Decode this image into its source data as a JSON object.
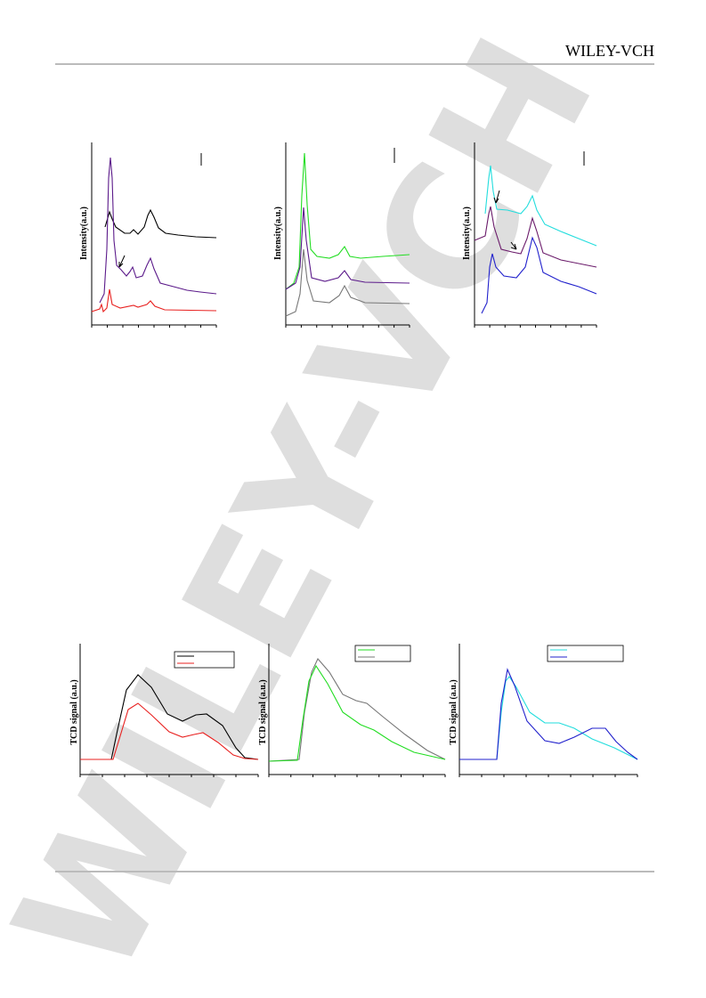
{
  "header": {
    "publisher": "WILEY-VCH"
  },
  "watermark": "WILEY-VCH",
  "figures": [
    {
      "panels": [
        {
          "y_label": "Intensity(a.u.)"
        },
        {
          "y_label": "Intensity(a.u.)"
        },
        {
          "y_label": "Intensity(a.u.)"
        }
      ]
    },
    {
      "panels": [
        {
          "y_label": "TCD signal (a.u.)"
        },
        {
          "y_label": "TCD signal (a.u.)"
        },
        {
          "y_label": "TCD signal (a.u.)"
        }
      ]
    }
  ]
}
